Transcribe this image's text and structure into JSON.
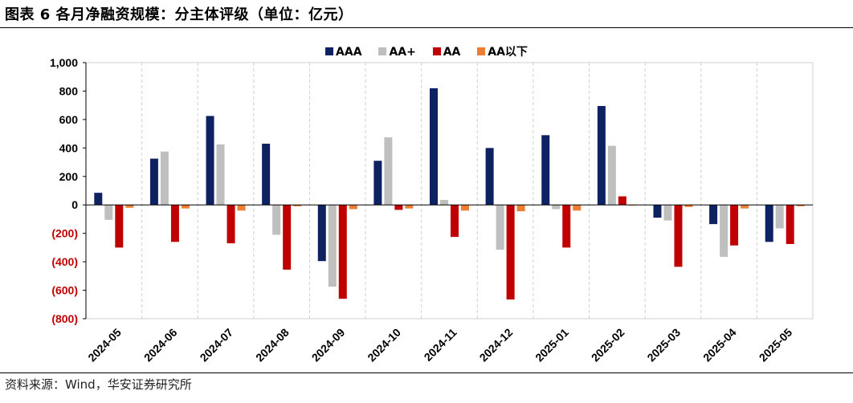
{
  "header": {
    "title": "图表 6 各月净融资规模：分主体评级（单位：亿元）"
  },
  "footer": {
    "source": "资料来源：Wind，华安证券研究所"
  },
  "colors": {
    "AAA": "#0e2160",
    "AA+": "#bfbfbf",
    "AA": "#c00000",
    "AA以下": "#ed7d31",
    "negative_tick": "#c00000",
    "grid": "#d0d0d0"
  },
  "chart_data": {
    "type": "bar",
    "title": "",
    "xlabel": "",
    "ylabel": "",
    "ylim": [
      -800,
      1000
    ],
    "yticks": [
      1000,
      800,
      600,
      400,
      200,
      0,
      -200,
      -400,
      -600,
      -800
    ],
    "ytick_labels": [
      "1,000",
      "800",
      "600",
      "400",
      "200",
      "0",
      "(200)",
      "(400)",
      "(600)",
      "(800)"
    ],
    "grid": "vertical dashed",
    "legend_position": "top-center",
    "categories": [
      "2024-05",
      "2024-06",
      "2024-07",
      "2024-08",
      "2024-09",
      "2024-10",
      "2024-11",
      "2024-12",
      "2025-01",
      "2025-02",
      "2025-03",
      "2025-04",
      "2025-05"
    ],
    "series": [
      {
        "name": "AAA",
        "values": [
          85,
          325,
          625,
          430,
          -395,
          310,
          820,
          400,
          490,
          695,
          -90,
          -135,
          -260
        ]
      },
      {
        "name": "AA+",
        "values": [
          -105,
          375,
          425,
          -210,
          -575,
          475,
          35,
          -315,
          -30,
          415,
          -110,
          -365,
          -165
        ]
      },
      {
        "name": "AA",
        "values": [
          -300,
          -260,
          -270,
          -455,
          -660,
          -35,
          -225,
          -665,
          -300,
          60,
          -435,
          -285,
          -275
        ]
      },
      {
        "name": "AA以下",
        "values": [
          -20,
          -25,
          -40,
          -10,
          -30,
          -25,
          -40,
          -45,
          -40,
          -5,
          -15,
          -25,
          -10
        ]
      }
    ]
  }
}
